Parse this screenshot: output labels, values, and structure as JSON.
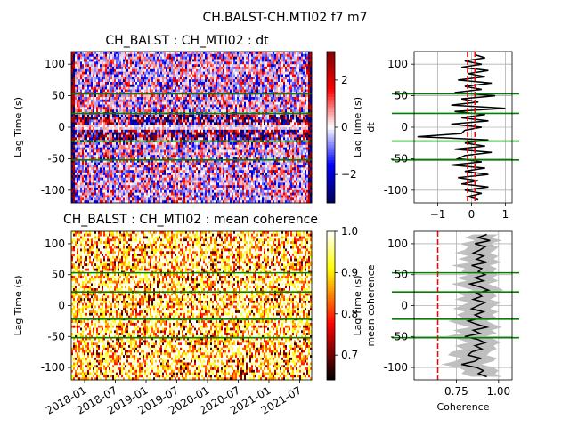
{
  "figure_title": "CH.BALST-CH.MTI02 f7 m7",
  "chart_data": [
    {
      "id": "dt-heatmap",
      "type": "heatmap",
      "title": "CH_BALST : CH_MTI02 : dt",
      "xlabel": "",
      "ylabel": "Lag Time (s)",
      "ylim": [
        -120,
        120
      ],
      "yticks": [
        100,
        50,
        0,
        -50,
        -100
      ],
      "xticks": [],
      "colormap": "seismic",
      "colorbar": {
        "range": [
          -3.2,
          3.2
        ],
        "ticks": [
          2,
          0,
          -2
        ],
        "tick_labels": [
          "2",
          "0",
          "−2"
        ]
      },
      "hlines": [
        53,
        22,
        -22,
        -52
      ],
      "hline_color": "#008000"
    },
    {
      "id": "dt-profile",
      "type": "line",
      "title": "",
      "xlabel": "dt",
      "ylabel": "Lag Time (s)",
      "xlim": [
        -1.7,
        1.2
      ],
      "ylim": [
        -120,
        120
      ],
      "xticks": [
        -1,
        0,
        1
      ],
      "xtick_labels": [
        "−1",
        "0",
        "1"
      ],
      "yticks": [
        100,
        50,
        0,
        -50,
        -100
      ],
      "grid": true,
      "vlines_dashed": [
        -0.12,
        0.1
      ],
      "vline_color": "#ff0000",
      "hlines": [
        53,
        22,
        -22,
        -52
      ],
      "hline_color": "#008000",
      "series": [
        {
          "color": "#000000",
          "lag": [
            115,
            110,
            105,
            100,
            95,
            90,
            85,
            80,
            75,
            70,
            65,
            60,
            55,
            50,
            45,
            40,
            35,
            30,
            25,
            20,
            15,
            10,
            5,
            0,
            -5,
            -10,
            -15,
            -20,
            -25,
            -30,
            -35,
            -40,
            -45,
            -50,
            -55,
            -60,
            -65,
            -70,
            -75,
            -80,
            -85,
            -90,
            -95,
            -100,
            -105,
            -110,
            -115
          ],
          "dt": [
            0.1,
            0.4,
            -0.2,
            0.3,
            -0.3,
            0.5,
            -0.1,
            0.4,
            -0.4,
            0.6,
            -0.2,
            0.3,
            -0.5,
            0.7,
            -0.3,
            0.2,
            -0.6,
            1.0,
            -0.5,
            0.4,
            -0.3,
            0.5,
            -0.6,
            0.3,
            -0.2,
            -0.3,
            -1.6,
            0.5,
            -0.2,
            0.4,
            -0.5,
            0.6,
            -0.2,
            -0.4,
            0.3,
            -0.6,
            0.4,
            -0.2,
            0.5,
            -0.4,
            0.2,
            -0.3,
            0.5,
            -0.2,
            0.3,
            -0.1,
            0.2
          ]
        }
      ]
    },
    {
      "id": "coh-heatmap",
      "type": "heatmap",
      "title": "CH_BALST : CH_MTI02 : mean coherence",
      "xlabel": "",
      "ylabel": "Lag Time (s)",
      "ylim": [
        -120,
        120
      ],
      "yticks": [
        100,
        50,
        0,
        -50,
        -100
      ],
      "xticks": [
        "2018-01",
        "2018-07",
        "2019-01",
        "2019-07",
        "2020-01",
        "2020-07",
        "2021-01",
        "2021-07"
      ],
      "colormap": "hot",
      "colorbar": {
        "range": [
          0.64,
          1.0
        ],
        "ticks": [
          1.0,
          0.9,
          0.8,
          0.7
        ],
        "tick_labels": [
          "1.0",
          "0.9",
          "0.8",
          "0.7"
        ]
      },
      "hlines": [
        53,
        22,
        -22,
        -52
      ],
      "hline_color": "#008000"
    },
    {
      "id": "coh-profile",
      "type": "line",
      "title": "",
      "xlabel": "Coherence",
      "ylabel": "Lag Time (s)",
      "y2label": "mean coherence",
      "xlim": [
        0.5,
        1.08
      ],
      "ylim": [
        -120,
        120
      ],
      "xticks": [
        0.75,
        1.0
      ],
      "xtick_labels": [
        "0.75",
        "1.00"
      ],
      "yticks": [
        100,
        50,
        0,
        -50,
        -100
      ],
      "grid": true,
      "vlines_dashed": [
        0.64
      ],
      "vline_color": "#ff0000",
      "hlines": [
        53,
        22,
        -22,
        -52
      ],
      "hline_color": "#008000",
      "band_color": "#bfbfbf",
      "series": [
        {
          "color": "#000000",
          "lag": [
            115,
            110,
            105,
            100,
            95,
            90,
            85,
            80,
            75,
            70,
            65,
            60,
            55,
            50,
            45,
            40,
            35,
            30,
            25,
            20,
            15,
            10,
            5,
            0,
            -5,
            -10,
            -15,
            -20,
            -25,
            -30,
            -35,
            -40,
            -45,
            -50,
            -55,
            -60,
            -65,
            -70,
            -75,
            -80,
            -85,
            -90,
            -95,
            -100,
            -105,
            -110,
            -115
          ],
          "mean": [
            0.93,
            0.88,
            0.95,
            0.86,
            0.92,
            0.89,
            0.85,
            0.91,
            0.87,
            0.93,
            0.84,
            0.9,
            0.88,
            0.92,
            0.86,
            0.91,
            0.83,
            0.89,
            0.94,
            0.87,
            0.9,
            0.85,
            0.92,
            0.88,
            0.84,
            0.91,
            0.86,
            0.9,
            0.82,
            0.87,
            0.93,
            0.85,
            0.89,
            0.8,
            0.88,
            0.92,
            0.86,
            0.9,
            0.84,
            0.82,
            0.89,
            0.86,
            0.78,
            0.87,
            0.91,
            0.88,
            0.93
          ],
          "band_low": [
            0.85,
            0.8,
            0.86,
            0.77,
            0.82,
            0.8,
            0.74,
            0.82,
            0.76,
            0.84,
            0.72,
            0.8,
            0.78,
            0.83,
            0.75,
            0.81,
            0.72,
            0.78,
            0.85,
            0.76,
            0.8,
            0.74,
            0.82,
            0.78,
            0.73,
            0.8,
            0.75,
            0.79,
            0.7,
            0.76,
            0.83,
            0.73,
            0.78,
            0.68,
            0.77,
            0.82,
            0.74,
            0.79,
            0.72,
            0.7,
            0.78,
            0.74,
            0.66,
            0.76,
            0.8,
            0.78,
            0.84
          ],
          "band_high": [
            1.0,
            0.96,
            1.02,
            0.95,
            1.0,
            0.98,
            0.95,
            1.0,
            0.97,
            1.02,
            0.95,
            0.99,
            0.97,
            1.0,
            0.96,
            1.0,
            0.94,
            0.99,
            1.03,
            0.97,
            0.99,
            0.95,
            1.01,
            0.98,
            0.95,
            1.0,
            0.96,
            0.99,
            0.93,
            0.97,
            1.02,
            0.96,
            0.99,
            0.92,
            0.98,
            1.01,
            0.97,
            0.99,
            0.95,
            0.93,
            0.99,
            0.97,
            0.9,
            0.97,
            1.0,
            0.98,
            1.02
          ]
        }
      ]
    }
  ]
}
